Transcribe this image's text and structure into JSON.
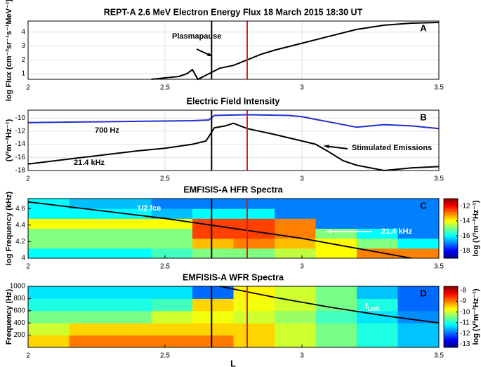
{
  "chart_data": [
    {
      "type": "line",
      "title": "REPT-A 2.6 MeV Electron Energy Flux  18 March 2015 18:30 UT",
      "y_label": "log Flux (cm⁻²sr⁻¹s⁻¹MeV⁻¹)",
      "panel_label": "A",
      "xlim": [
        2,
        3.5
      ],
      "xticks": [
        2,
        2.5,
        3,
        3.5
      ],
      "ylim": [
        0.6,
        4.8
      ],
      "yticks": [
        1,
        2,
        3,
        4
      ],
      "grid": true,
      "annotations": [
        "Plasmapause"
      ],
      "series": [
        {
          "name": "flux",
          "color": "#000000",
          "x": [
            2.45,
            2.5,
            2.55,
            2.58,
            2.6,
            2.62,
            2.65,
            2.67,
            2.7,
            2.75,
            2.8,
            2.85,
            2.9,
            3.0,
            3.1,
            3.2,
            3.3,
            3.4,
            3.5
          ],
          "values": [
            0.6,
            0.7,
            0.8,
            1.0,
            1.3,
            0.6,
            0.9,
            1.1,
            1.4,
            1.6,
            2.0,
            2.4,
            2.7,
            3.2,
            3.7,
            4.2,
            4.5,
            4.65,
            4.7
          ]
        }
      ]
    },
    {
      "type": "line",
      "title": "Electric Field Intensity",
      "y_label": "(V²m⁻²Hz⁻¹)",
      "panel_label": "B",
      "xlim": [
        2,
        3.5
      ],
      "xticks": [
        2,
        2.5,
        3,
        3.5
      ],
      "ylim": [
        -18,
        -8.8
      ],
      "yticks": [
        -10,
        -12,
        -14,
        -16,
        -18
      ],
      "grid": true,
      "annotations": [
        "700 Hz",
        "21.4 kHz",
        "Stimulated Emissions"
      ],
      "series": [
        {
          "name": "700 Hz",
          "color": "#1f2fd0",
          "x": [
            2,
            2.2,
            2.4,
            2.6,
            2.66,
            2.68,
            2.8,
            2.95,
            3.0,
            3.05,
            3.1,
            3.2,
            3.3,
            3.4,
            3.5
          ],
          "values": [
            -10.7,
            -10.6,
            -10.5,
            -10.4,
            -10.3,
            -9.6,
            -9.5,
            -9.6,
            -9.8,
            -10.2,
            -10.6,
            -11.4,
            -11.0,
            -11.2,
            -11.6
          ]
        },
        {
          "name": "21.4 kHz",
          "color": "#000000",
          "x": [
            2,
            2.1,
            2.2,
            2.3,
            2.4,
            2.5,
            2.6,
            2.65,
            2.68,
            2.72,
            2.75,
            2.8,
            2.9,
            3.0,
            3.05,
            3.1,
            3.15,
            3.2,
            3.3,
            3.4,
            3.5
          ],
          "values": [
            -17,
            -16.5,
            -16,
            -15.5,
            -15,
            -14.6,
            -14,
            -13.5,
            -11.5,
            -11.2,
            -10.8,
            -11.6,
            -12.5,
            -13.5,
            -14.0,
            -15.2,
            -16.5,
            -17.2,
            -18,
            -17.6,
            -17.4
          ]
        }
      ]
    },
    {
      "type": "heatmap",
      "title": "EMFISIS-A HFR Spectra",
      "y_label": "log Frequency (kHz)",
      "panel_label": "C",
      "colorbar_label": "log (V²m⁻²Hz⁻¹)",
      "xlim": [
        2,
        3.5
      ],
      "xticks": [
        2,
        2.5,
        3,
        3.5
      ],
      "ylim": [
        4,
        4.72
      ],
      "yticks": [
        4,
        4.2,
        4.4,
        4.6
      ],
      "clim": [
        -19,
        -11
      ],
      "cticks": [
        -12,
        -14,
        -16,
        -18
      ],
      "annotations": [
        "21.4 kHz"
      ],
      "xbins": [
        2,
        2.15,
        2.3,
        2.45,
        2.6,
        2.75,
        2.9,
        3.05,
        3.2,
        3.35,
        3.5
      ],
      "ybins": [
        4,
        4.12,
        4.24,
        4.36,
        4.48,
        4.6,
        4.72
      ],
      "z": [
        [
          -16,
          -16,
          -16,
          -15.5,
          -15,
          -15,
          -14.5,
          -14,
          -13,
          -13
        ],
        [
          -15,
          -15,
          -15,
          -15,
          -13.5,
          -13,
          -13.5,
          -14,
          -15,
          -16
        ],
        [
          -15,
          -15,
          -15,
          -15,
          -12.5,
          -12.5,
          -13,
          -15,
          -16,
          -17
        ],
        [
          -14,
          -14,
          -14,
          -14,
          -12.5,
          -12.5,
          -13,
          -17,
          -17,
          -17
        ],
        [
          -16,
          -16,
          -16,
          -16.5,
          -16,
          -16,
          -17,
          -17,
          -17,
          -17
        ],
        [
          -16,
          -16.5,
          -16.5,
          -17,
          -17,
          -17,
          -17,
          -17,
          -17,
          -17
        ]
      ],
      "curves": [
        {
          "name": "1/2 fce",
          "color": "#000000",
          "x": [
            2,
            2.5,
            3,
            3.4
          ],
          "values": [
            4.68,
            4.48,
            4.24,
            4.0
          ]
        }
      ]
    },
    {
      "type": "heatmap",
      "title": "EMFISIS-A WFR Spectra",
      "y_label": "Frequency (Hz)",
      "x_label": "L",
      "panel_label": "D",
      "colorbar_label": "log (V²m⁻²Hz⁻¹)",
      "xlim": [
        2,
        3.5
      ],
      "xticks": [
        2,
        2.5,
        3,
        3.5
      ],
      "ylim": [
        0,
        1000
      ],
      "yticks": [
        200,
        400,
        600,
        800,
        1000
      ],
      "clim": [
        -13.3,
        -7.6
      ],
      "cticks": [
        -8,
        -9,
        -10,
        -11,
        -12,
        -13
      ],
      "annotations": [],
      "xbins": [
        2,
        2.15,
        2.3,
        2.45,
        2.6,
        2.75,
        2.9,
        3.05,
        3.2,
        3.35,
        3.5
      ],
      "ybins": [
        0,
        200,
        400,
        600,
        800,
        1000
      ],
      "z": [
        [
          -9.5,
          -9,
          -9,
          -9,
          -9,
          -9.5,
          -10,
          -10.5,
          -11,
          -11.5
        ],
        [
          -10,
          -9.5,
          -9.5,
          -9.5,
          -9.5,
          -9.5,
          -10,
          -10.5,
          -11,
          -11.5
        ],
        [
          -10.5,
          -10.5,
          -10.5,
          -10,
          -9.8,
          -10,
          -10.3,
          -10.8,
          -11.3,
          -11.8
        ],
        [
          -11,
          -11,
          -11,
          -10.8,
          -9.5,
          -9.8,
          -10,
          -10.5,
          -11,
          -12
        ],
        [
          -11.3,
          -11.3,
          -11.3,
          -11.3,
          -12,
          -9.7,
          -10,
          -10.5,
          -11.5,
          -12
        ]
      ],
      "curves": [
        {
          "name": "f",
          "subscript": "LHR",
          "color": "#000000",
          "x": [
            2.7,
            2.9,
            3.1,
            3.3,
            3.5
          ],
          "values": [
            1000,
            820,
            660,
            520,
            400
          ]
        }
      ]
    }
  ],
  "vertical_lines": [
    {
      "x": 2.67,
      "color": "#000000"
    },
    {
      "x": 2.8,
      "color": "#d62020"
    }
  ]
}
